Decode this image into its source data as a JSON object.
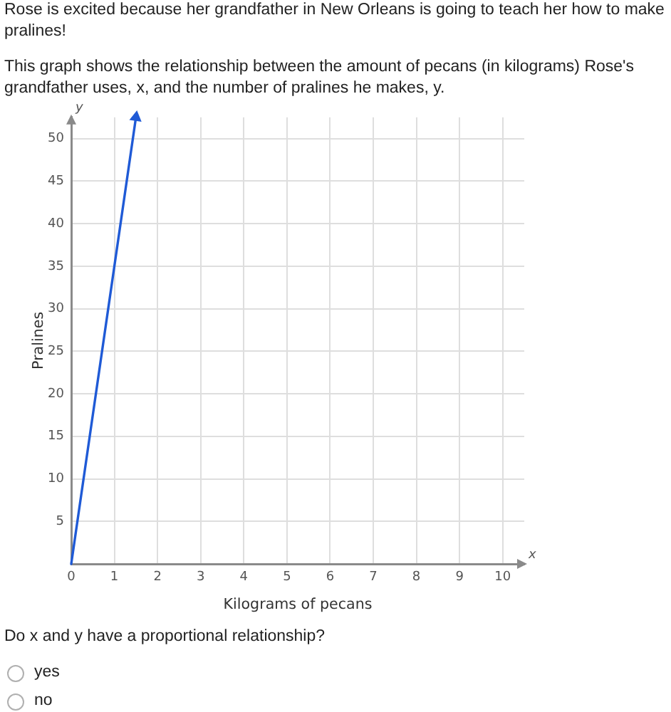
{
  "chart_data": {
    "type": "line",
    "title": "Rose is excited because her grandfather in New Orleans is going to teach her how to make pralines!",
    "subtitle": "This graph shows the relationship between the amount of pecans (in kilograms) Rose's grandfather uses, x, and the number of pralines he makes, y.",
    "xlabel": "Kilograms of pecans",
    "ylabel": "Pralines",
    "annotations": [
      {
        "text": "x",
        "x": 10.5,
        "y": 0
      },
      {
        "text": "y",
        "x": 0,
        "y": 52.5
      },
      "Do x and y have a proportional relationship?",
      "yes",
      "no"
    ],
    "x": [
      0,
      1.5
    ],
    "values": [
      0,
      52.5
    ],
    "color": "#1f5ad6",
    "xlim": [
      0,
      10.5
    ],
    "ylim": [
      0,
      52.5
    ],
    "xticks": [
      0,
      1,
      2,
      3,
      4,
      5,
      6,
      7,
      8,
      9,
      10
    ],
    "yticks": [
      5,
      10,
      15,
      20,
      25,
      30,
      35,
      40,
      45,
      50
    ],
    "grid": true
  }
}
